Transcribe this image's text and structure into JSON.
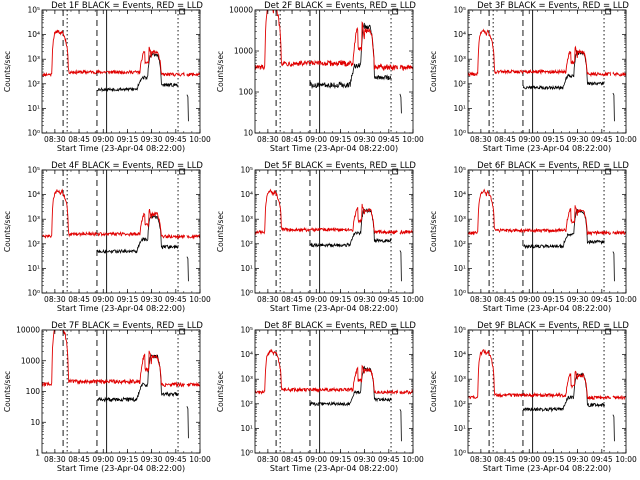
{
  "window": {
    "title": ""
  },
  "colors": {
    "events": "#000000",
    "lld": "#e00000",
    "axis": "#000000"
  },
  "shared": {
    "xlabel": "Start Time (23-Apr-04 08:22:00)",
    "ylabel": "Counts/sec",
    "xtick_labels": [
      "08:30",
      "08:45",
      "09:00",
      "09:15",
      "09:30",
      "09:45",
      "10:00"
    ]
  },
  "chart_data": [
    {
      "type": "line",
      "title": "Det 1F BLACK = Events, RED = LLD",
      "xlabel": "Start Time (23-Apr-04 08:22:00)",
      "ylabel": "Counts/sec",
      "yscale": "log",
      "xrange_hours": [
        8.367,
        10.0
      ],
      "ylim": [
        1,
        100000
      ],
      "yticks": [
        1,
        10,
        100,
        1000,
        10000,
        100000
      ],
      "ytick_labels": [
        "10⁰",
        "10¹",
        "10²",
        "10³",
        "10⁴",
        "10⁵"
      ],
      "lld_level": 240,
      "events_level": 60,
      "series": [
        {
          "name": "Events",
          "color": "#000000"
        },
        {
          "name": "LLD",
          "color": "#e00000"
        }
      ]
    },
    {
      "type": "line",
      "title": "Det 2F BLACK = Events, RED = LLD",
      "xlabel": "Start Time (23-Apr-04 08:22:00)",
      "ylabel": "Counts/sec",
      "yscale": "log",
      "xrange_hours": [
        8.367,
        10.0
      ],
      "ylim": [
        10,
        10000
      ],
      "yticks": [
        10,
        100,
        1000,
        10000
      ],
      "ytick_labels": [
        "10",
        "100",
        "1000",
        "10000"
      ],
      "lld_level": 400,
      "events_level": 150,
      "series": [
        {
          "name": "Events",
          "color": "#000000"
        },
        {
          "name": "LLD",
          "color": "#e00000"
        }
      ]
    },
    {
      "type": "line",
      "title": "Det 3F BLACK = Events, RED = LLD",
      "xlabel": "Start Time (23-Apr-04 08:22:00)",
      "ylabel": "Counts/sec",
      "yscale": "log",
      "xrange_hours": [
        8.367,
        10.0
      ],
      "ylim": [
        1,
        100000
      ],
      "yticks": [
        1,
        10,
        100,
        1000,
        10000,
        100000
      ],
      "ytick_labels": [
        "10⁰",
        "10¹",
        "10²",
        "10³",
        "10⁴",
        "10⁵"
      ],
      "lld_level": 250,
      "events_level": 70,
      "series": [
        {
          "name": "Events",
          "color": "#000000"
        },
        {
          "name": "LLD",
          "color": "#e00000"
        }
      ]
    },
    {
      "type": "line",
      "title": "Det 4F BLACK = Events, RED = LLD",
      "xlabel": "Start Time (23-Apr-04 08:22:00)",
      "ylabel": "Counts/sec",
      "yscale": "log",
      "xrange_hours": [
        8.367,
        10.0
      ],
      "ylim": [
        1,
        100000
      ],
      "yticks": [
        1,
        10,
        100,
        1000,
        10000,
        100000
      ],
      "ytick_labels": [
        "10⁰",
        "10¹",
        "10²",
        "10³",
        "10⁴",
        "10⁵"
      ],
      "lld_level": 200,
      "events_level": 50,
      "series": [
        {
          "name": "Events",
          "color": "#000000"
        },
        {
          "name": "LLD",
          "color": "#e00000"
        }
      ]
    },
    {
      "type": "line",
      "title": "Det 5F BLACK = Events, RED = LLD",
      "xlabel": "Start Time (23-Apr-04 08:22:00)",
      "ylabel": "Counts/sec",
      "yscale": "log",
      "xrange_hours": [
        8.367,
        10.0
      ],
      "ylim": [
        1,
        100000
      ],
      "yticks": [
        1,
        10,
        100,
        1000,
        10000,
        100000
      ],
      "ytick_labels": [
        "10⁰",
        "10¹",
        "10²",
        "10³",
        "10⁴",
        "10⁵"
      ],
      "lld_level": 300,
      "events_level": 90,
      "series": [
        {
          "name": "Events",
          "color": "#000000"
        },
        {
          "name": "LLD",
          "color": "#e00000"
        }
      ]
    },
    {
      "type": "line",
      "title": "Det 6F BLACK = Events, RED = LLD",
      "xlabel": "Start Time (23-Apr-04 08:22:00)",
      "ylabel": "Counts/sec",
      "yscale": "log",
      "xrange_hours": [
        8.367,
        10.0
      ],
      "ylim": [
        1,
        100000
      ],
      "yticks": [
        1,
        10,
        100,
        1000,
        10000,
        100000
      ],
      "ytick_labels": [
        "10⁰",
        "10¹",
        "10²",
        "10³",
        "10⁴",
        "10⁵"
      ],
      "lld_level": 280,
      "events_level": 80,
      "series": [
        {
          "name": "Events",
          "color": "#000000"
        },
        {
          "name": "LLD",
          "color": "#e00000"
        }
      ]
    },
    {
      "type": "line",
      "title": "Det 7F BLACK = Events, RED = LLD",
      "xlabel": "Start Time (23-Apr-04 08:22:00)",
      "ylabel": "Counts/sec",
      "yscale": "log",
      "xrange_hours": [
        8.367,
        10.0
      ],
      "ylim": [
        1,
        10000
      ],
      "yticks": [
        1,
        10,
        100,
        1000,
        10000
      ],
      "ytick_labels": [
        "1",
        "10",
        "100",
        "1000",
        "10000"
      ],
      "lld_level": 170,
      "events_level": 55,
      "series": [
        {
          "name": "Events",
          "color": "#000000"
        },
        {
          "name": "LLD",
          "color": "#e00000"
        }
      ]
    },
    {
      "type": "line",
      "title": "Det 8F BLACK = Events, RED = LLD",
      "xlabel": "Start Time (23-Apr-04 08:22:00)",
      "ylabel": "Counts/sec",
      "yscale": "log",
      "xrange_hours": [
        8.367,
        10.0
      ],
      "ylim": [
        1,
        100000
      ],
      "yticks": [
        1,
        10,
        100,
        1000,
        10000,
        100000
      ],
      "ytick_labels": [
        "10⁰",
        "10¹",
        "10²",
        "10³",
        "10⁴",
        "10⁵"
      ],
      "lld_level": 300,
      "events_level": 100,
      "series": [
        {
          "name": "Events",
          "color": "#000000"
        },
        {
          "name": "LLD",
          "color": "#e00000"
        }
      ]
    },
    {
      "type": "line",
      "title": "Det 9F BLACK = Events, RED = LLD",
      "xlabel": "Start Time (23-Apr-04 08:22:00)",
      "ylabel": "Counts/sec",
      "yscale": "log",
      "xrange_hours": [
        8.367,
        10.0
      ],
      "ylim": [
        1,
        100000
      ],
      "yticks": [
        1,
        10,
        100,
        1000,
        10000,
        100000
      ],
      "ytick_labels": [
        "10⁰",
        "10¹",
        "10²",
        "10³",
        "10⁴",
        "10⁵"
      ],
      "lld_level": 180,
      "events_level": 60,
      "series": [
        {
          "name": "Events",
          "color": "#000000"
        },
        {
          "name": "LLD",
          "color": "#e00000"
        }
      ]
    }
  ]
}
